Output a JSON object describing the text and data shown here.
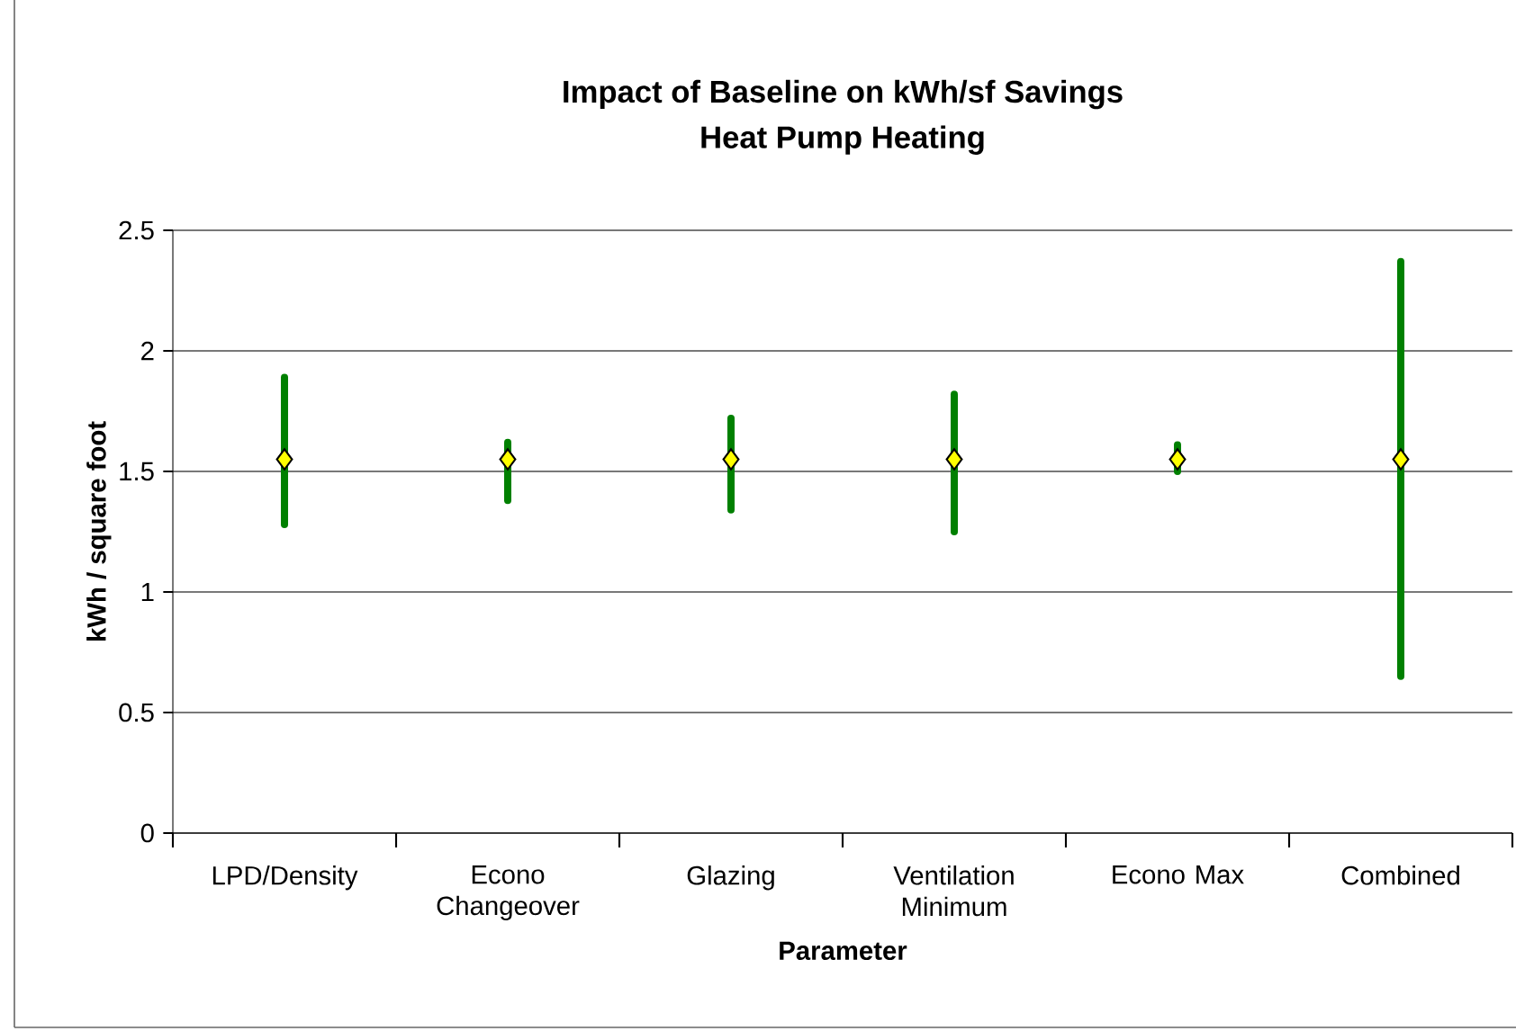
{
  "chart_data": {
    "type": "scatter",
    "title": "Impact of Baseline on kWh/sf Savings",
    "subtitle": "Heat Pump Heating",
    "xlabel": "Parameter",
    "ylabel": "kWh / square foot",
    "categories": [
      "LPD/Density",
      "Econo Changeover",
      "Glazing",
      "Ventilation Minimum",
      "Econo Max",
      "Combined"
    ],
    "series": [
      {
        "color": "#ffff00",
        "values": [
          1.55,
          1.55,
          1.55,
          1.55,
          1.55,
          1.55
        ],
        "errors": [
          [
            1.28,
            1.89
          ],
          [
            1.38,
            1.62
          ],
          [
            1.34,
            1.72
          ],
          [
            1.25,
            1.82
          ],
          [
            1.5,
            1.61
          ],
          [
            0.65,
            2.37
          ]
        ]
      }
    ],
    "ylim": [
      0,
      2.5
    ],
    "yticks": [
      0,
      0.5,
      1,
      1.5,
      2,
      2.5
    ],
    "grid": "y",
    "marker": "diamond"
  }
}
